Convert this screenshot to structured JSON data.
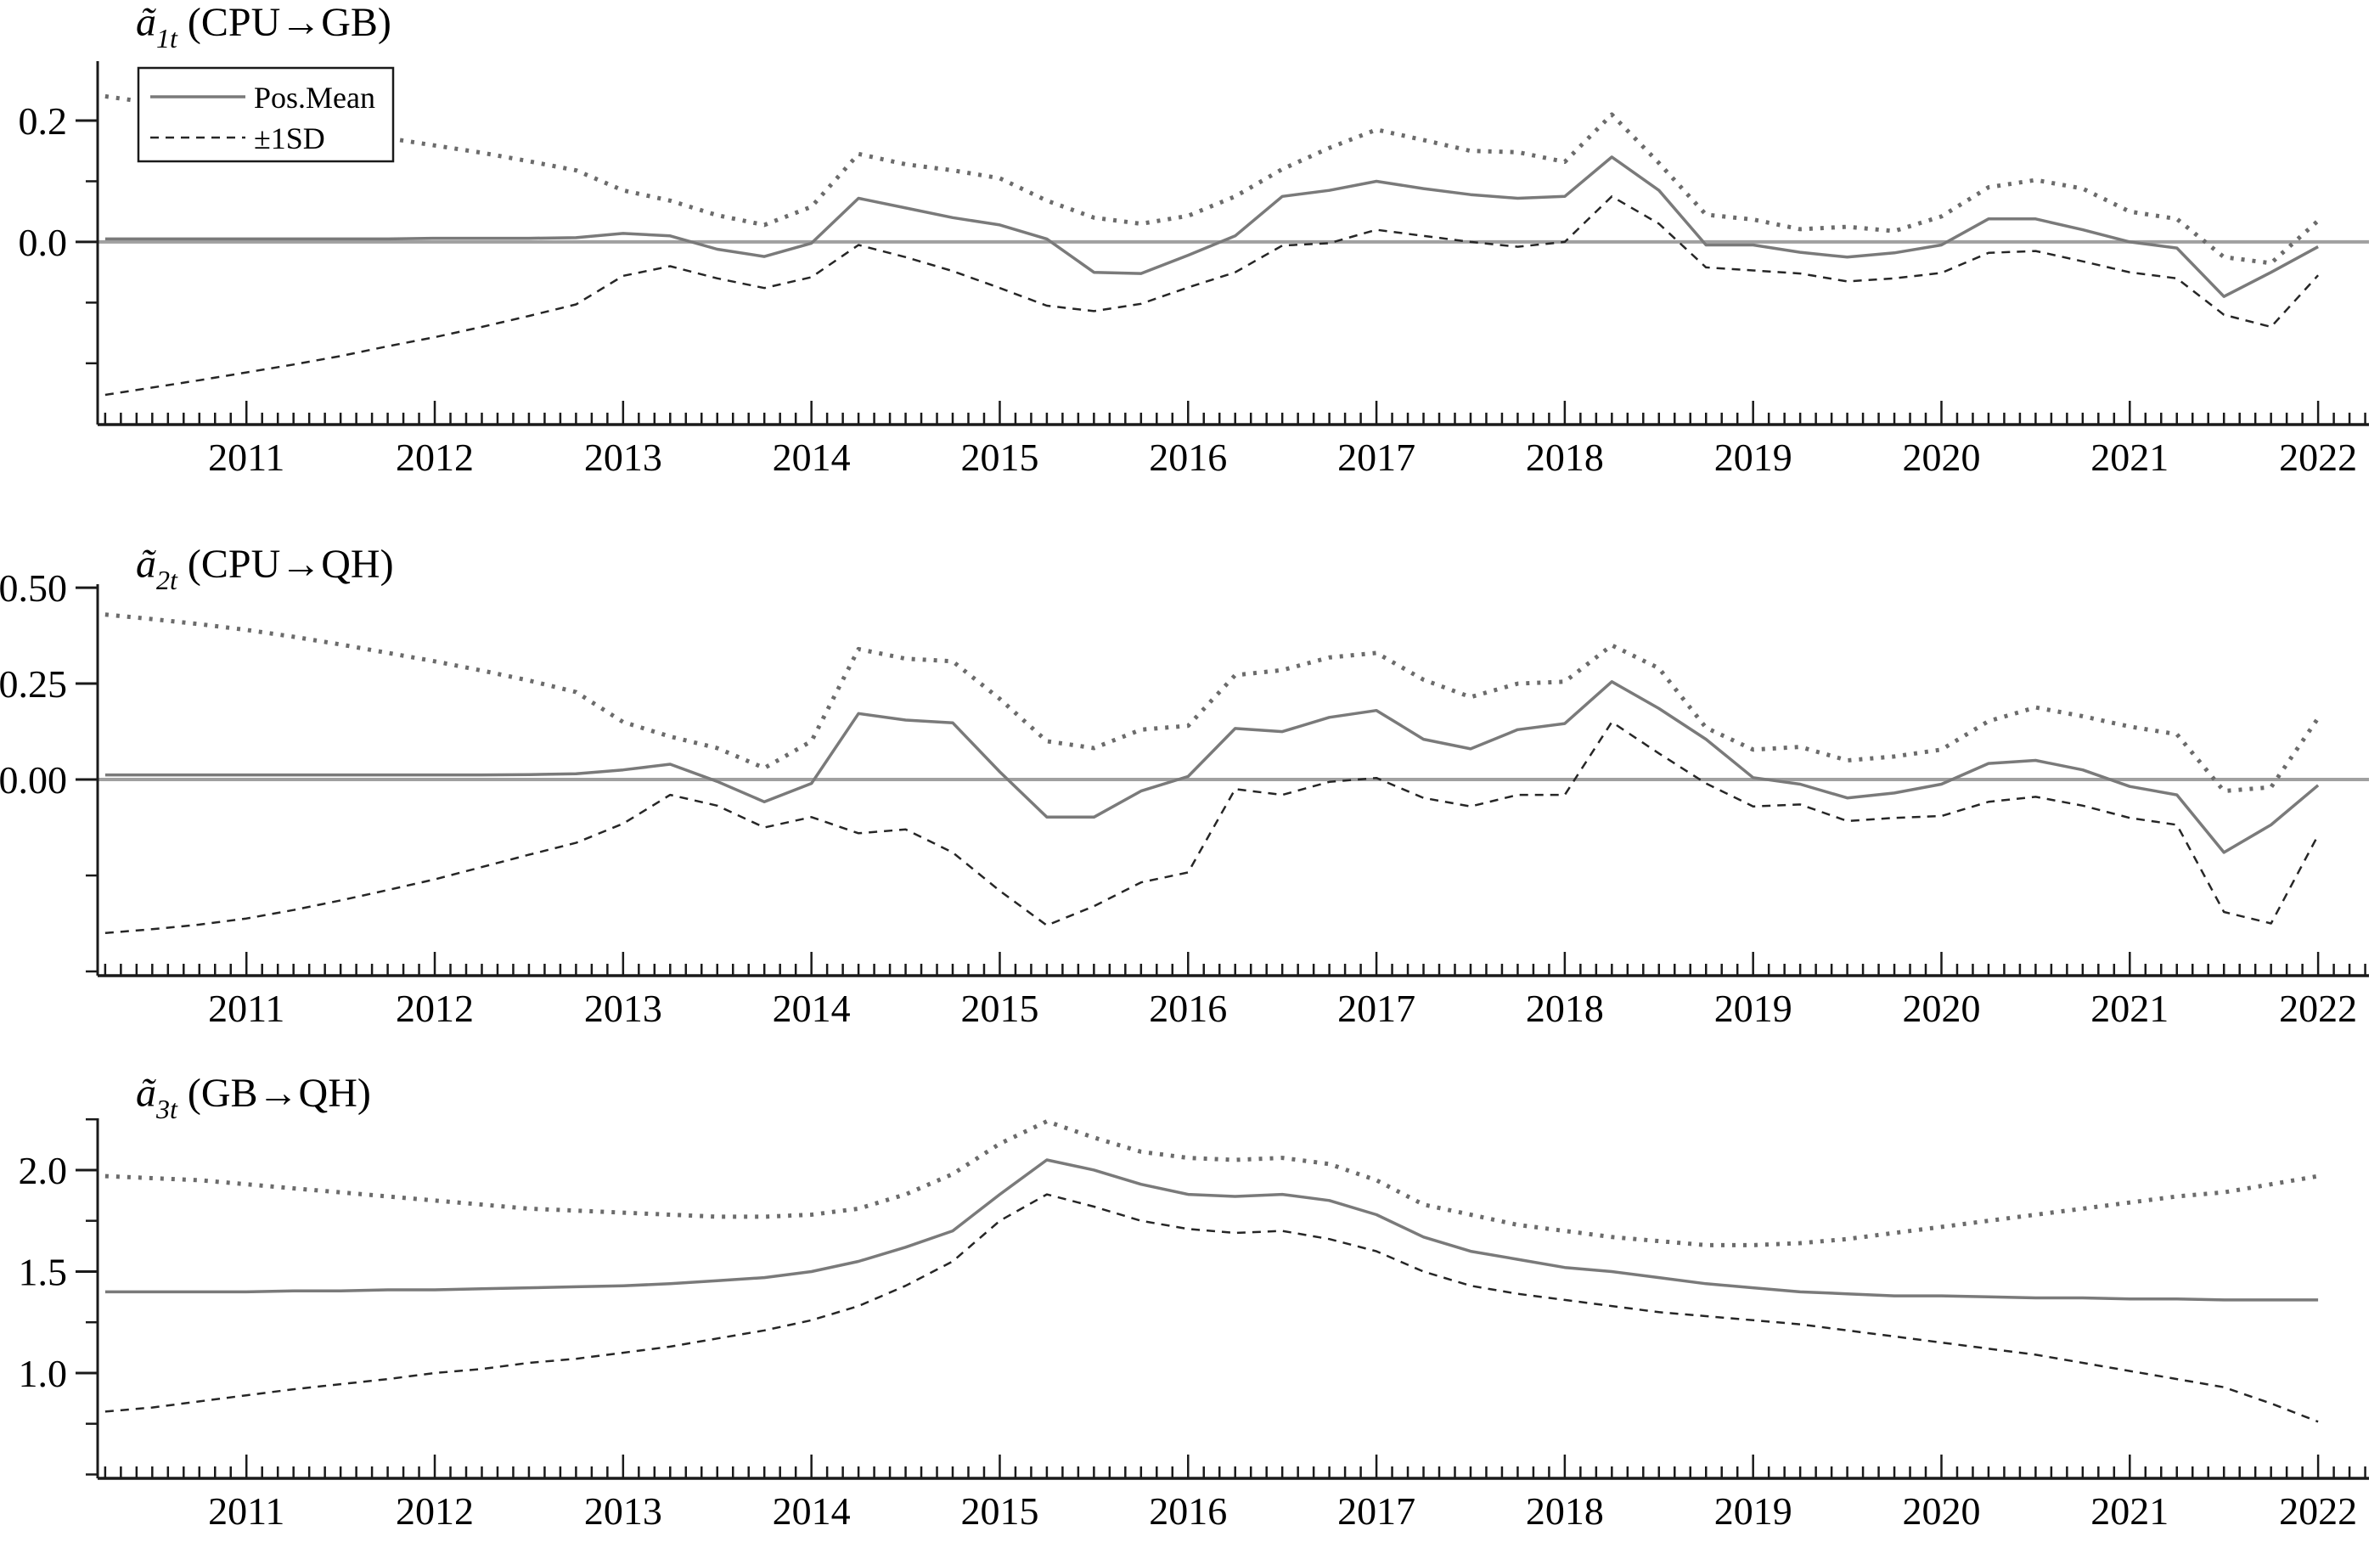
{
  "styles": {
    "background": "#ffffff",
    "text_color": "#000000",
    "axis_color": "#1a1a1a",
    "zero_line_color": "#a0a0a0",
    "series_styles": {
      "mean": {
        "color": "#7a7a7a",
        "width": 3.5,
        "dash": ""
      },
      "upper": {
        "color": "#6b6b6b",
        "width": 5,
        "dash": "4 9"
      },
      "lower": {
        "color": "#262626",
        "width": 2.5,
        "dash": "10 8"
      }
    }
  },
  "chart_data": {
    "type": "line",
    "layout_hint": "three stacked panels, shared x axis 2010-2022, monthly minor ticks, legend top-left of first panel, grid off",
    "x_axis": {
      "xlim": [
        2010.21,
        2022.27
      ],
      "year_labels": [
        "2011",
        "2012",
        "2013",
        "2014",
        "2015",
        "2016",
        "2017",
        "2018",
        "2019",
        "2020",
        "2021",
        "2022"
      ],
      "minor_tick_step_years": 0.0833333
    },
    "legend": {
      "items": [
        {
          "label": "Pos.Mean",
          "style": "mean"
        },
        {
          "label": "±1SD",
          "style": "lower"
        }
      ]
    },
    "x": [
      2010.25,
      2010.5,
      2010.75,
      2011.0,
      2011.25,
      2011.5,
      2011.75,
      2012.0,
      2012.25,
      2012.5,
      2012.75,
      2013.0,
      2013.25,
      2013.5,
      2013.75,
      2014.0,
      2014.25,
      2014.5,
      2014.75,
      2015.0,
      2015.25,
      2015.5,
      2015.75,
      2016.0,
      2016.25,
      2016.5,
      2016.75,
      2017.0,
      2017.25,
      2017.5,
      2017.75,
      2018.0,
      2018.25,
      2018.5,
      2018.75,
      2019.0,
      2019.25,
      2019.5,
      2019.75,
      2020.0,
      2020.25,
      2020.5,
      2020.75,
      2021.0,
      2021.25,
      2021.5,
      2021.75,
      2022.0
    ],
    "panels": [
      {
        "title_text": "ã1t (CPU→GB)",
        "title": {
          "sym": "ã",
          "sub": "1t",
          "rest": " (CPU→GB)"
        },
        "ylim": [
          -0.301,
          0.298
        ],
        "yticks_labeled": [
          {
            "v": 0.2,
            "label": "0.2"
          },
          {
            "v": 0.0,
            "label": "0.0"
          }
        ],
        "yticks_minor": [
          0.3,
          0.1,
          -0.1,
          -0.2
        ],
        "zero_line": true,
        "has_legend": true,
        "series": [
          {
            "name": "Pos.Mean",
            "style": "mean",
            "values": [
              0.005,
              0.005,
              0.005,
              0.005,
              0.005,
              0.005,
              0.005,
              0.006,
              0.006,
              0.006,
              0.007,
              0.014,
              0.01,
              -0.012,
              -0.024,
              -0.002,
              0.072,
              0.056,
              0.04,
              0.028,
              0.005,
              -0.05,
              -0.052,
              -0.022,
              0.01,
              0.075,
              0.085,
              0.1,
              0.088,
              0.078,
              0.072,
              0.075,
              0.14,
              0.085,
              -0.005,
              -0.005,
              -0.017,
              -0.025,
              -0.018,
              -0.005,
              0.038,
              0.038,
              0.02,
              0.0,
              -0.01,
              -0.09,
              -0.05,
              -0.008
            ]
          },
          {
            "name": "+1SD",
            "style": "upper",
            "values": [
              0.24,
              0.229,
              0.218,
              0.207,
              0.195,
              0.183,
              0.171,
              0.159,
              0.147,
              0.133,
              0.118,
              0.085,
              0.068,
              0.044,
              0.028,
              0.058,
              0.145,
              0.128,
              0.118,
              0.105,
              0.068,
              0.04,
              0.03,
              0.043,
              0.075,
              0.12,
              0.155,
              0.185,
              0.168,
              0.15,
              0.148,
              0.132,
              0.21,
              0.13,
              0.045,
              0.037,
              0.021,
              0.025,
              0.018,
              0.042,
              0.09,
              0.102,
              0.088,
              0.05,
              0.038,
              -0.025,
              -0.035,
              0.035
            ]
          },
          {
            "name": "-1SD",
            "style": "lower",
            "values": [
              -0.252,
              -0.24,
              -0.228,
              -0.215,
              -0.202,
              -0.188,
              -0.172,
              -0.157,
              -0.14,
              -0.122,
              -0.103,
              -0.056,
              -0.04,
              -0.06,
              -0.076,
              -0.058,
              -0.005,
              -0.025,
              -0.048,
              -0.076,
              -0.105,
              -0.114,
              -0.102,
              -0.075,
              -0.05,
              -0.006,
              -0.002,
              0.02,
              0.01,
              0.0,
              -0.008,
              0.0,
              0.075,
              0.03,
              -0.042,
              -0.047,
              -0.052,
              -0.065,
              -0.06,
              -0.051,
              -0.018,
              -0.015,
              -0.032,
              -0.05,
              -0.06,
              -0.12,
              -0.14,
              -0.055
            ]
          }
        ]
      },
      {
        "title_text": "ã2t (CPU→QH)",
        "title": {
          "sym": "ã",
          "sub": "2t",
          "rest": " (CPU→QH)"
        },
        "ylim": [
          -0.511,
          0.509
        ],
        "yticks_labeled": [
          {
            "v": 0.5,
            "label": "0.50"
          },
          {
            "v": 0.25,
            "label": "0.25"
          },
          {
            "v": 0.0,
            "label": "0.00"
          }
        ],
        "yticks_minor": [
          -0.25,
          -0.5
        ],
        "zero_line": true,
        "has_legend": false,
        "series": [
          {
            "name": "Pos.Mean",
            "style": "mean",
            "values": [
              0.012,
              0.012,
              0.012,
              0.012,
              0.012,
              0.012,
              0.012,
              0.012,
              0.012,
              0.013,
              0.015,
              0.025,
              0.04,
              -0.005,
              -0.058,
              -0.01,
              0.172,
              0.155,
              0.148,
              0.02,
              -0.098,
              -0.098,
              -0.03,
              0.008,
              0.133,
              0.125,
              0.162,
              0.18,
              0.105,
              0.08,
              0.13,
              0.146,
              0.255,
              0.185,
              0.105,
              0.005,
              -0.012,
              -0.048,
              -0.035,
              -0.012,
              0.042,
              0.05,
              0.025,
              -0.018,
              -0.04,
              -0.19,
              -0.118,
              -0.015
            ]
          },
          {
            "name": "+1SD",
            "style": "upper",
            "values": [
              0.43,
              0.418,
              0.405,
              0.39,
              0.372,
              0.352,
              0.33,
              0.308,
              0.284,
              0.258,
              0.228,
              0.15,
              0.112,
              0.082,
              0.03,
              0.1,
              0.34,
              0.315,
              0.308,
              0.21,
              0.1,
              0.082,
              0.13,
              0.14,
              0.272,
              0.285,
              0.318,
              0.33,
              0.26,
              0.215,
              0.25,
              0.255,
              0.35,
              0.29,
              0.135,
              0.078,
              0.085,
              0.05,
              0.06,
              0.078,
              0.152,
              0.188,
              0.165,
              0.138,
              0.118,
              -0.03,
              -0.02,
              0.16
            ]
          },
          {
            "name": "-1SD",
            "style": "lower",
            "values": [
              -0.4,
              -0.39,
              -0.378,
              -0.362,
              -0.34,
              -0.315,
              -0.288,
              -0.26,
              -0.228,
              -0.196,
              -0.165,
              -0.115,
              -0.04,
              -0.068,
              -0.125,
              -0.098,
              -0.14,
              -0.13,
              -0.19,
              -0.29,
              -0.38,
              -0.33,
              -0.268,
              -0.242,
              -0.025,
              -0.04,
              -0.006,
              0.004,
              -0.048,
              -0.07,
              -0.04,
              -0.04,
              0.15,
              0.068,
              -0.01,
              -0.07,
              -0.065,
              -0.108,
              -0.1,
              -0.095,
              -0.058,
              -0.045,
              -0.068,
              -0.1,
              -0.118,
              -0.345,
              -0.375,
              -0.145
            ]
          }
        ]
      },
      {
        "title_text": "ã3t (GB→QH)",
        "title": {
          "sym": "ã",
          "sub": "3t",
          "rest": " (GB→QH)"
        },
        "ylim": [
          0.481,
          2.255
        ],
        "yticks_labeled": [
          {
            "v": 2.0,
            "label": "2.0"
          },
          {
            "v": 1.5,
            "label": "1.5"
          },
          {
            "v": 1.0,
            "label": "1.0"
          }
        ],
        "yticks_minor": [
          2.25,
          1.75,
          1.25,
          0.75,
          0.5
        ],
        "zero_line": false,
        "has_legend": false,
        "series": [
          {
            "name": "Pos.Mean",
            "style": "mean",
            "values": [
              1.4,
              1.4,
              1.4,
              1.4,
              1.405,
              1.405,
              1.41,
              1.41,
              1.415,
              1.42,
              1.425,
              1.43,
              1.44,
              1.455,
              1.47,
              1.5,
              1.55,
              1.62,
              1.7,
              1.88,
              2.05,
              2.0,
              1.93,
              1.88,
              1.87,
              1.88,
              1.85,
              1.78,
              1.67,
              1.6,
              1.56,
              1.52,
              1.5,
              1.47,
              1.44,
              1.42,
              1.4,
              1.39,
              1.38,
              1.38,
              1.375,
              1.37,
              1.37,
              1.365,
              1.365,
              1.36,
              1.36,
              1.36
            ]
          },
          {
            "name": "+1SD",
            "style": "upper",
            "values": [
              1.97,
              1.96,
              1.95,
              1.93,
              1.91,
              1.89,
              1.87,
              1.85,
              1.83,
              1.81,
              1.8,
              1.79,
              1.78,
              1.77,
              1.77,
              1.78,
              1.81,
              1.88,
              1.98,
              2.13,
              2.24,
              2.16,
              2.09,
              2.06,
              2.05,
              2.06,
              2.03,
              1.95,
              1.83,
              1.78,
              1.73,
              1.7,
              1.67,
              1.65,
              1.63,
              1.63,
              1.64,
              1.66,
              1.69,
              1.72,
              1.75,
              1.78,
              1.81,
              1.84,
              1.87,
              1.89,
              1.93,
              1.97
            ]
          },
          {
            "name": "-1SD",
            "style": "lower",
            "values": [
              0.81,
              0.83,
              0.86,
              0.89,
              0.92,
              0.945,
              0.97,
              1.0,
              1.02,
              1.05,
              1.07,
              1.1,
              1.13,
              1.17,
              1.21,
              1.26,
              1.33,
              1.43,
              1.55,
              1.75,
              1.88,
              1.82,
              1.75,
              1.71,
              1.69,
              1.7,
              1.66,
              1.6,
              1.5,
              1.43,
              1.39,
              1.36,
              1.33,
              1.3,
              1.28,
              1.26,
              1.24,
              1.21,
              1.18,
              1.15,
              1.12,
              1.09,
              1.05,
              1.01,
              0.97,
              0.93,
              0.85,
              0.76
            ]
          }
        ]
      }
    ]
  }
}
